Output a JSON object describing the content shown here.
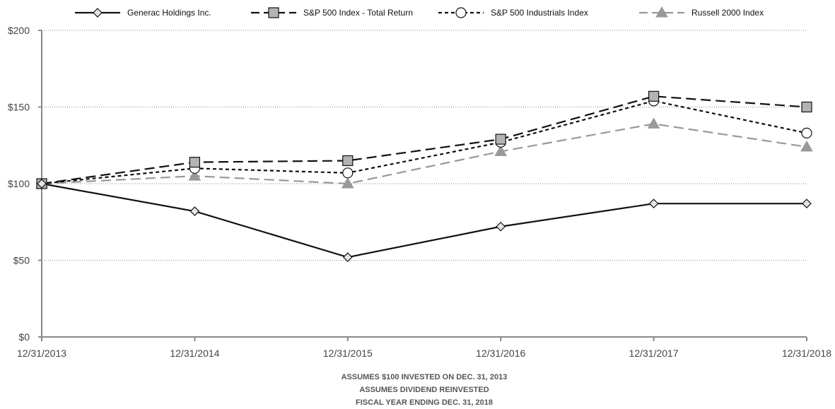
{
  "chart_data": {
    "type": "line",
    "title": "",
    "xlabel": "",
    "ylabel": "",
    "categories": [
      "12/31/2013",
      "12/31/2014",
      "12/31/2015",
      "12/31/2016",
      "12/31/2017",
      "12/31/2018"
    ],
    "ylim": [
      0,
      200
    ],
    "y_ticks": [
      0,
      50,
      100,
      150,
      200
    ],
    "y_tick_labels": [
      "$0",
      "$50",
      "$100",
      "$150",
      "$200"
    ],
    "grid": true,
    "legend_position": "top",
    "series": [
      {
        "name": "Generac Holdings Inc.",
        "values": [
          100,
          82,
          52,
          72,
          87,
          87
        ],
        "color": "#111111",
        "line_style": "solid",
        "marker": "diamond",
        "marker_fill": "#e6e6e6"
      },
      {
        "name": "S&P 500 Index - Total Return",
        "values": [
          100,
          114,
          115,
          129,
          157,
          150
        ],
        "color": "#111111",
        "line_style": "long-dash",
        "marker": "square",
        "marker_fill": "#b3b3b3"
      },
      {
        "name": "S&P 500 Industrials Index",
        "values": [
          100,
          110,
          107,
          127,
          154,
          133
        ],
        "color": "#111111",
        "line_style": "short-dash",
        "marker": "circle",
        "marker_fill": "#ffffff"
      },
      {
        "name": "Russell 2000 Index",
        "values": [
          100,
          105,
          100,
          121,
          139,
          124
        ],
        "color": "#999999",
        "line_style": "long-dash",
        "marker": "triangle",
        "marker_fill": "#999999"
      }
    ],
    "annotations": [
      "ASSUMES $100 INVESTED ON DEC. 31, 2013",
      "ASSUMES DIVIDEND REINVESTED",
      "FISCAL YEAR ENDING DEC. 31, 2018"
    ]
  }
}
